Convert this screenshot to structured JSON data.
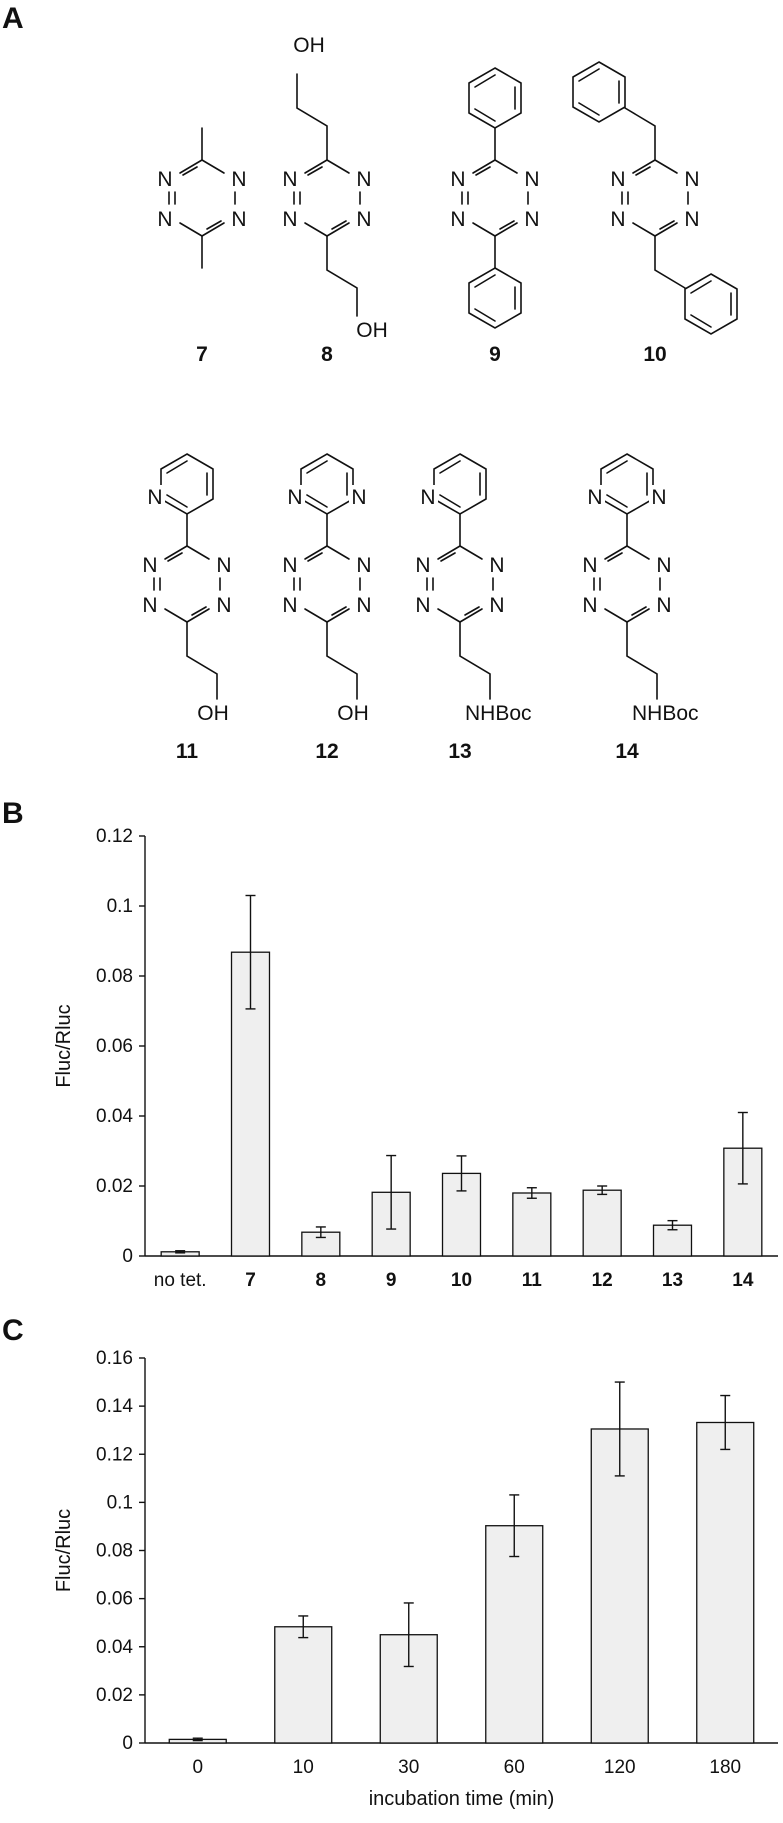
{
  "panels": {
    "a": "A",
    "b": "B",
    "c": "C"
  },
  "structures": [
    {
      "label": "7",
      "top": "",
      "bottom": "",
      "ring_n": [
        "N",
        "N",
        "N",
        "N"
      ]
    },
    {
      "label": "8",
      "top": "OH",
      "bottom": "OH",
      "ring_n": [
        "N",
        "N",
        "N",
        "N"
      ]
    },
    {
      "label": "9",
      "top": "",
      "bottom": "",
      "ring_n": [
        "N",
        "N",
        "N",
        "N"
      ]
    },
    {
      "label": "10",
      "top": "",
      "bottom": "",
      "ring_n": [
        "N",
        "N",
        "N",
        "N"
      ]
    },
    {
      "label": "11",
      "top": "N",
      "bottom": "OH",
      "ring_n": [
        "N",
        "N",
        "N",
        "N"
      ]
    },
    {
      "label": "12",
      "top": "N",
      "top2": "N",
      "bottom": "OH",
      "ring_n": [
        "N",
        "N",
        "N",
        "N"
      ]
    },
    {
      "label": "13",
      "top": "N",
      "bottom": "NHBoc",
      "ring_n": [
        "N",
        "N",
        "N",
        "N"
      ]
    },
    {
      "label": "14",
      "top": "N",
      "top2": "N",
      "bottom": "NHBoc",
      "ring_n": [
        "N",
        "N",
        "N",
        "N"
      ]
    }
  ],
  "chart_data": [
    {
      "type": "bar",
      "panel": "B",
      "categories": [
        "no tet.",
        "7",
        "8",
        "9",
        "10",
        "11",
        "12",
        "13",
        "14"
      ],
      "bold_categories": [
        "7",
        "8",
        "9",
        "10",
        "11",
        "12",
        "13",
        "14"
      ],
      "values": [
        0.0012,
        0.0868,
        0.0068,
        0.0182,
        0.0236,
        0.018,
        0.0188,
        0.0088,
        0.0308
      ],
      "errors": [
        0.0003,
        0.0162,
        0.0015,
        0.0105,
        0.005,
        0.0015,
        0.0012,
        0.0013,
        0.0102
      ],
      "ylabel": "Fluc/Rluc",
      "xlabel": "",
      "ylim": [
        0,
        0.12
      ],
      "yticks": [
        "0",
        "0.02",
        "0.04",
        "0.06",
        "0.08",
        "0.1",
        "0.12"
      ],
      "grid": false,
      "bar_color": "#efefef"
    },
    {
      "type": "bar",
      "panel": "C",
      "categories": [
        "0",
        "10",
        "30",
        "60",
        "120",
        "180"
      ],
      "values": [
        0.0015,
        0.0483,
        0.045,
        0.0903,
        0.1305,
        0.1332
      ],
      "errors": [
        0.0005,
        0.0045,
        0.0132,
        0.0128,
        0.0195,
        0.0112
      ],
      "ylabel": "Fluc/Rluc",
      "xlabel": "incubation time (min)",
      "ylim": [
        0,
        0.16
      ],
      "yticks": [
        "0",
        "0.02",
        "0.04",
        "0.06",
        "0.08",
        "0.1",
        "0.12",
        "0.14",
        "0.16"
      ],
      "grid": false,
      "bar_color": "#efefef"
    }
  ]
}
